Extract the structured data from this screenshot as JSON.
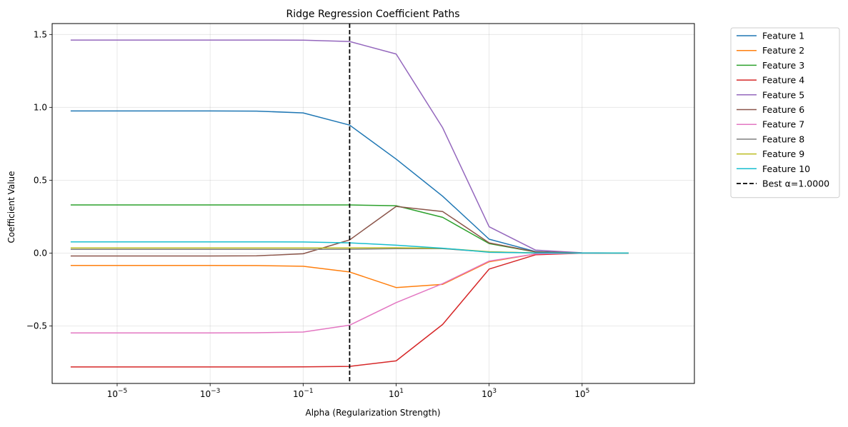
{
  "chart_data": {
    "type": "line",
    "title": "Ridge Regression Coefficient Paths",
    "xlabel": "Alpha (Regularization Strength)",
    "ylabel": "Coefficient Value",
    "x_scale": "log",
    "x": [
      1e-06,
      1e-05,
      0.0001,
      0.001,
      0.01,
      0.1,
      1,
      10,
      100,
      1000,
      10000,
      100000,
      1000000
    ],
    "xlim": [
      4e-07,
      26000000.0
    ],
    "ylim": [
      -0.895,
      1.575
    ],
    "x_ticks": [
      {
        "value": 1e-05,
        "base": "10",
        "exp": "−5"
      },
      {
        "value": 0.001,
        "base": "10",
        "exp": "−3"
      },
      {
        "value": 0.1,
        "base": "10",
        "exp": "−1"
      },
      {
        "value": 10,
        "base": "10",
        "exp": "1"
      },
      {
        "value": 1000,
        "base": "10",
        "exp": "3"
      },
      {
        "value": 100000,
        "base": "10",
        "exp": "5"
      }
    ],
    "y_ticks": [
      {
        "value": -0.5,
        "label": "−0.5"
      },
      {
        "value": 0.0,
        "label": "0.0"
      },
      {
        "value": 0.5,
        "label": "0.5"
      },
      {
        "value": 1.0,
        "label": "1.0"
      },
      {
        "value": 1.5,
        "label": "1.5"
      }
    ],
    "grid": true,
    "legend_position": "outside-top-right",
    "series": [
      {
        "name": "Feature 1",
        "color": "#1f77b4",
        "values": [
          0.975,
          0.975,
          0.975,
          0.975,
          0.974,
          0.962,
          0.878,
          0.645,
          0.39,
          0.095,
          0.01,
          0.001,
          0.0
        ]
      },
      {
        "name": "Feature 2",
        "color": "#ff7f0e",
        "values": [
          -0.085,
          -0.085,
          -0.085,
          -0.085,
          -0.086,
          -0.091,
          -0.13,
          -0.237,
          -0.215,
          -0.06,
          -0.006,
          -0.001,
          0.0
        ]
      },
      {
        "name": "Feature 3",
        "color": "#2ca02c",
        "values": [
          0.33,
          0.33,
          0.33,
          0.33,
          0.33,
          0.33,
          0.33,
          0.325,
          0.245,
          0.065,
          0.007,
          0.001,
          0.0
        ]
      },
      {
        "name": "Feature 4",
        "color": "#d62728",
        "values": [
          -0.782,
          -0.782,
          -0.782,
          -0.782,
          -0.782,
          -0.781,
          -0.778,
          -0.74,
          -0.49,
          -0.11,
          -0.012,
          -0.001,
          0.0
        ]
      },
      {
        "name": "Feature 5",
        "color": "#9467bd",
        "values": [
          1.462,
          1.462,
          1.462,
          1.462,
          1.462,
          1.461,
          1.452,
          1.366,
          0.86,
          0.18,
          0.02,
          0.002,
          0.0
        ]
      },
      {
        "name": "Feature 6",
        "color": "#8c564b",
        "values": [
          -0.02,
          -0.02,
          -0.02,
          -0.02,
          -0.019,
          -0.005,
          0.09,
          0.32,
          0.285,
          0.07,
          0.008,
          0.001,
          0.0
        ]
      },
      {
        "name": "Feature 7",
        "color": "#e377c2",
        "values": [
          -0.548,
          -0.548,
          -0.548,
          -0.548,
          -0.547,
          -0.542,
          -0.495,
          -0.34,
          -0.21,
          -0.055,
          -0.006,
          -0.001,
          0.0
        ]
      },
      {
        "name": "Feature 8",
        "color": "#7f7f7f",
        "values": [
          0.025,
          0.025,
          0.025,
          0.025,
          0.025,
          0.025,
          0.026,
          0.03,
          0.03,
          0.008,
          0.001,
          0.0,
          0.0
        ]
      },
      {
        "name": "Feature 9",
        "color": "#bcbd22",
        "values": [
          0.035,
          0.035,
          0.035,
          0.035,
          0.035,
          0.035,
          0.035,
          0.036,
          0.032,
          0.009,
          0.001,
          0.0,
          0.0
        ]
      },
      {
        "name": "Feature 10",
        "color": "#17becf",
        "values": [
          0.077,
          0.077,
          0.077,
          0.077,
          0.077,
          0.076,
          0.07,
          0.054,
          0.033,
          0.006,
          0.001,
          0.0,
          0.0
        ]
      }
    ],
    "reference_line": {
      "label": "Best α=1.0000",
      "x": 1.0,
      "color": "#000000",
      "style": "dashed"
    }
  }
}
